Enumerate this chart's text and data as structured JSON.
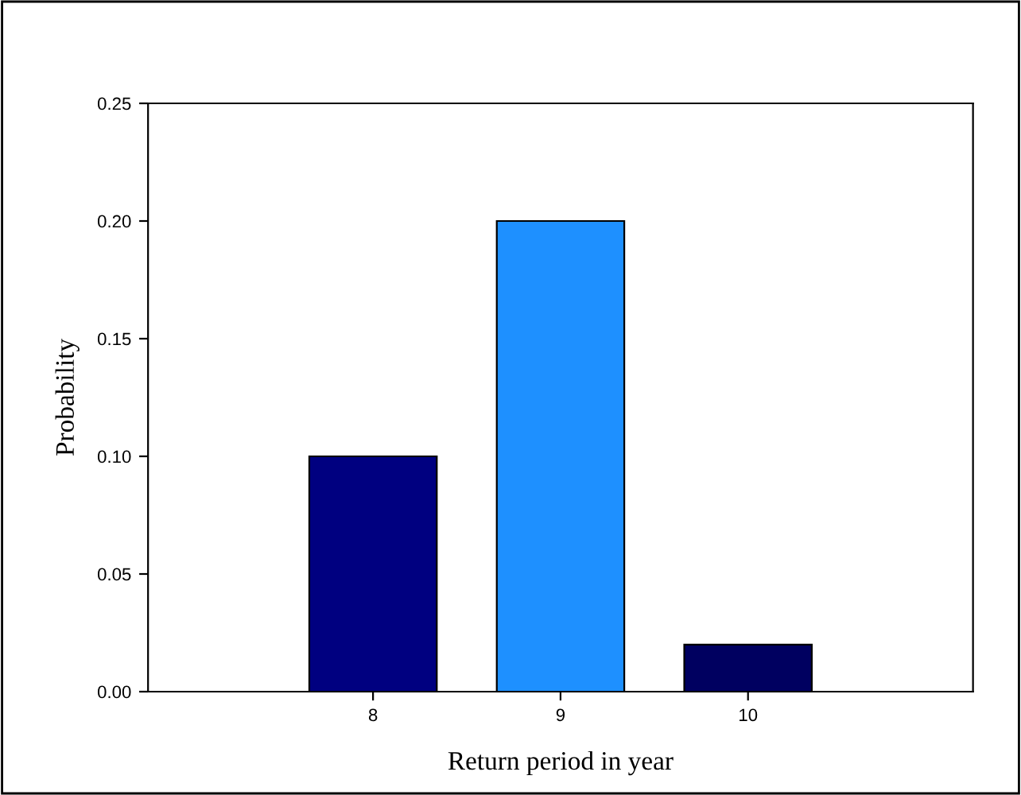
{
  "chart_data": {
    "type": "bar",
    "xlabel": "Return period in year",
    "ylabel": "Probability",
    "x": [
      8,
      9,
      10
    ],
    "values": [
      0.1,
      0.2,
      0.02
    ],
    "colors": [
      "#000080",
      "#1e90ff",
      "#000060"
    ],
    "xlim": [
      6.8,
      11.2
    ],
    "xticks": [
      8,
      9,
      10
    ],
    "ylim": [
      0,
      0.25
    ],
    "yticks": [
      {
        "value": 0,
        "label": "0.00"
      },
      {
        "value": 0.05,
        "label": "0.05"
      },
      {
        "value": 0.1,
        "label": "0.10"
      },
      {
        "value": 0.15,
        "label": "0.15"
      },
      {
        "value": 0.2,
        "label": "0.20"
      },
      {
        "value": 0.25,
        "label": "0.25"
      }
    ],
    "grid": false
  }
}
